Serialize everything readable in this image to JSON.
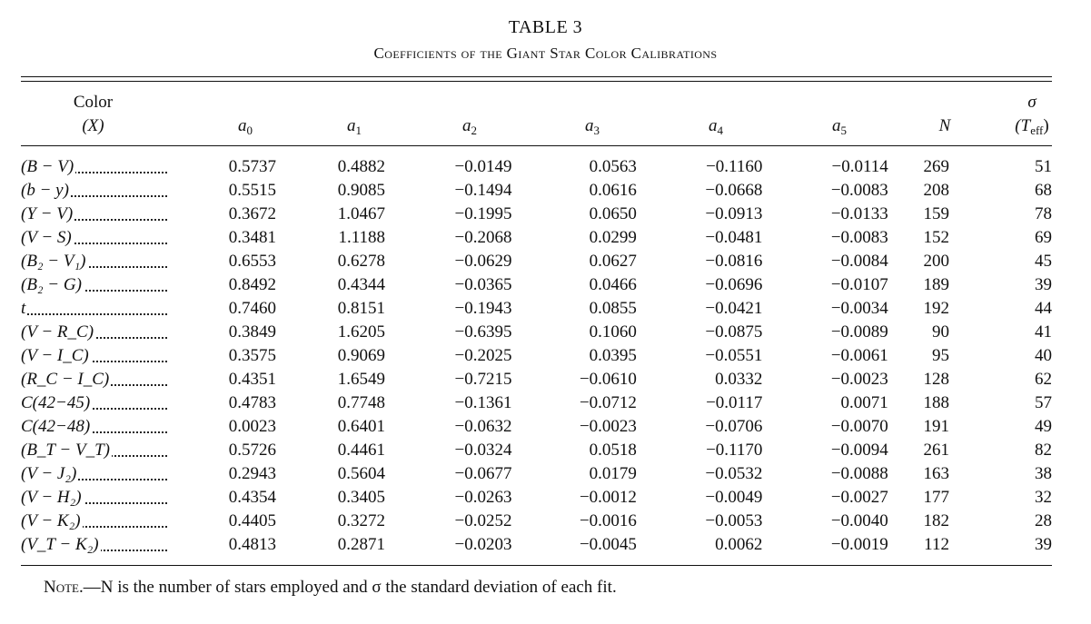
{
  "table": {
    "number": "TABLE 3",
    "title": "Coefficients of the Giant Star Color Calibrations",
    "headers": {
      "color_line1": "Color",
      "color_line2": "(X)",
      "a": "a",
      "a0_sub": "0",
      "a1_sub": "1",
      "a2_sub": "2",
      "a3_sub": "3",
      "a4_sub": "4",
      "a5_sub": "5",
      "n": "N",
      "sigma_line1": "σ",
      "sigma_line2_pre": "(T",
      "sigma_line2_sub": "eff",
      "sigma_line2_post": ")"
    },
    "rows": [
      {
        "color": "(B − V)",
        "a0": "0.5737",
        "a1": "0.4882",
        "a2": "−0.0149",
        "a3": "0.0563",
        "a4": "−0.1160",
        "a5": "−0.0114",
        "n": "269",
        "sigma": "51"
      },
      {
        "color": "(b − y)",
        "a0": "0.5515",
        "a1": "0.9085",
        "a2": "−0.1494",
        "a3": "0.0616",
        "a4": "−0.0668",
        "a5": "−0.0083",
        "n": "208",
        "sigma": "68"
      },
      {
        "color": "(Y − V)",
        "a0": "0.3672",
        "a1": "1.0467",
        "a2": "−0.1995",
        "a3": "0.0650",
        "a4": "−0.0913",
        "a5": "−0.0133",
        "n": "159",
        "sigma": "78"
      },
      {
        "color": "(V − S)",
        "a0": "0.3481",
        "a1": "1.1188",
        "a2": "−0.2068",
        "a3": "0.0299",
        "a4": "−0.0481",
        "a5": "−0.0083",
        "n": "152",
        "sigma": "69"
      },
      {
        "color": "(B₂ − V₁)",
        "a0": "0.6553",
        "a1": "0.6278",
        "a2": "−0.0629",
        "a3": "0.0627",
        "a4": "−0.0816",
        "a5": "−0.0084",
        "n": "200",
        "sigma": "45"
      },
      {
        "color": "(B₂ − G)",
        "a0": "0.8492",
        "a1": "0.4344",
        "a2": "−0.0365",
        "a3": "0.0466",
        "a4": "−0.0696",
        "a5": "−0.0107",
        "n": "189",
        "sigma": "39"
      },
      {
        "color": "t",
        "a0": "0.7460",
        "a1": "0.8151",
        "a2": "−0.1943",
        "a3": "0.0855",
        "a4": "−0.0421",
        "a5": "−0.0034",
        "n": "192",
        "sigma": "44"
      },
      {
        "color": "(V − R_C)",
        "a0": "0.3849",
        "a1": "1.6205",
        "a2": "−0.6395",
        "a3": "0.1060",
        "a4": "−0.0875",
        "a5": "−0.0089",
        "n": "90",
        "sigma": "41"
      },
      {
        "color": "(V − I_C)",
        "a0": "0.3575",
        "a1": "0.9069",
        "a2": "−0.2025",
        "a3": "0.0395",
        "a4": "−0.0551",
        "a5": "−0.0061",
        "n": "95",
        "sigma": "40"
      },
      {
        "color": "(R_C − I_C)",
        "a0": "0.4351",
        "a1": "1.6549",
        "a2": "−0.7215",
        "a3": "−0.0610",
        "a4": "0.0332",
        "a5": "−0.0023",
        "n": "128",
        "sigma": "62"
      },
      {
        "color": "C(42−45)",
        "a0": "0.4783",
        "a1": "0.7748",
        "a2": "−0.1361",
        "a3": "−0.0712",
        "a4": "−0.0117",
        "a5": "0.0071",
        "n": "188",
        "sigma": "57"
      },
      {
        "color": "C(42−48)",
        "a0": "0.0023",
        "a1": "0.6401",
        "a2": "−0.0632",
        "a3": "−0.0023",
        "a4": "−0.0706",
        "a5": "−0.0070",
        "n": "191",
        "sigma": "49"
      },
      {
        "color": "(B_T − V_T)",
        "a0": "0.5726",
        "a1": "0.4461",
        "a2": "−0.0324",
        "a3": "0.0518",
        "a4": "−0.1170",
        "a5": "−0.0094",
        "n": "261",
        "sigma": "82"
      },
      {
        "color": "(V − J₂)",
        "a0": "0.2943",
        "a1": "0.5604",
        "a2": "−0.0677",
        "a3": "0.0179",
        "a4": "−0.0532",
        "a5": "−0.0088",
        "n": "163",
        "sigma": "38"
      },
      {
        "color": "(V − H₂)",
        "a0": "0.4354",
        "a1": "0.3405",
        "a2": "−0.0263",
        "a3": "−0.0012",
        "a4": "−0.0049",
        "a5": "−0.0027",
        "n": "177",
        "sigma": "32"
      },
      {
        "color": "(V − K₂)",
        "a0": "0.4405",
        "a1": "0.3272",
        "a2": "−0.0252",
        "a3": "−0.0016",
        "a4": "−0.0053",
        "a5": "−0.0040",
        "n": "182",
        "sigma": "28"
      },
      {
        "color": "(V_T − K₂)",
        "a0": "0.4813",
        "a1": "0.2871",
        "a2": "−0.0203",
        "a3": "−0.0045",
        "a4": "0.0062",
        "a5": "−0.0019",
        "n": "112",
        "sigma": "39"
      }
    ],
    "note_label": "Note.",
    "note_text": "—N is the number of stars employed and σ the standard deviation of each fit."
  }
}
